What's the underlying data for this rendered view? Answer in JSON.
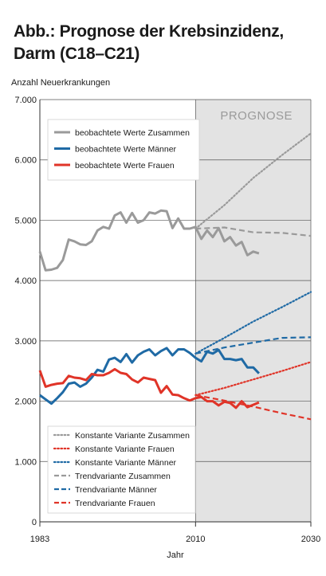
{
  "title_line1": "Abb.: Prognose der Krebsinzidenz,",
  "title_line2": "Darm (C18–C21)",
  "chart_data": {
    "type": "line",
    "ylabel": "Anzahl Neuerkrankungen",
    "xlabel": "Jahr",
    "xlim": [
      1983,
      2030
    ],
    "ylim": [
      0,
      7000
    ],
    "x_ticks": [
      1983,
      2010,
      2030
    ],
    "x_tick_labels": [
      "1983",
      "2010",
      "2030"
    ],
    "y_ticks": [
      0,
      1000,
      2000,
      3000,
      4000,
      5000,
      6000,
      7000
    ],
    "y_tick_labels": [
      "0",
      "1.000",
      "2.000",
      "3.000",
      "4.000",
      "5.000",
      "6.000",
      "7.000"
    ],
    "prognosis_region": {
      "label": "PROGNOSE",
      "start": 2010,
      "end": 2030,
      "color": "#e3e3e3"
    },
    "grid": true,
    "legend_top": [
      {
        "label": "beobachtete Werte Zusammen",
        "color": "#9a9a9a",
        "style": "solid"
      },
      {
        "label": "beobachtete Werte Männer",
        "color": "#1f6aa5",
        "style": "solid"
      },
      {
        "label": "beobachtete Werte Frauen",
        "color": "#e03428",
        "style": "solid"
      }
    ],
    "legend_bottom": [
      {
        "label": "Konstante Variante Zusammen",
        "color": "#9a9a9a",
        "style": "dotted"
      },
      {
        "label": "Konstante Variante Frauen",
        "color": "#e03428",
        "style": "dotted"
      },
      {
        "label": "Konstante Variante Männer",
        "color": "#1f6aa5",
        "style": "dotted"
      },
      {
        "label": "Trendvariante Zusammen",
        "color": "#9a9a9a",
        "style": "dashed"
      },
      {
        "label": "Trendvariante Männer",
        "color": "#1f6aa5",
        "style": "dashed"
      },
      {
        "label": "Trendvariante Frauen",
        "color": "#e03428",
        "style": "dashed"
      }
    ],
    "series": [
      {
        "name": "beobachtete Werte Zusammen",
        "color": "#9a9a9a",
        "style": "solid",
        "x": [
          1983,
          1984,
          1985,
          1986,
          1987,
          1988,
          1989,
          1990,
          1991,
          1992,
          1993,
          1994,
          1995,
          1996,
          1997,
          1998,
          1999,
          2000,
          2001,
          2002,
          2003,
          2004,
          2005,
          2006,
          2007,
          2008,
          2009,
          2010,
          2011,
          2012,
          2013,
          2014,
          2015,
          2016,
          2017,
          2018,
          2019,
          2020,
          2021
        ],
        "y": [
          4480,
          4170,
          4180,
          4210,
          4340,
          4680,
          4650,
          4600,
          4590,
          4650,
          4830,
          4890,
          4860,
          5080,
          5130,
          4960,
          5120,
          4960,
          5000,
          5130,
          5110,
          5160,
          5150,
          4870,
          5030,
          4860,
          4860,
          4890,
          4690,
          4830,
          4720,
          4870,
          4650,
          4720,
          4580,
          4640,
          4420,
          4480,
          4450
        ]
      },
      {
        "name": "beobachtete Werte Männer",
        "color": "#1f6aa5",
        "style": "solid",
        "x": [
          1983,
          1984,
          1985,
          1986,
          1987,
          1988,
          1989,
          1990,
          1991,
          1992,
          1993,
          1994,
          1995,
          1996,
          1997,
          1998,
          1999,
          2000,
          2001,
          2002,
          2003,
          2004,
          2005,
          2006,
          2007,
          2008,
          2009,
          2010,
          2011,
          2012,
          2013,
          2014,
          2015,
          2016,
          2017,
          2018,
          2019,
          2020,
          2021
        ],
        "y": [
          2100,
          2030,
          1960,
          2050,
          2150,
          2290,
          2310,
          2240,
          2290,
          2390,
          2520,
          2490,
          2690,
          2720,
          2650,
          2780,
          2640,
          2760,
          2820,
          2860,
          2760,
          2830,
          2880,
          2760,
          2860,
          2860,
          2800,
          2720,
          2660,
          2820,
          2790,
          2850,
          2700,
          2700,
          2680,
          2700,
          2560,
          2560,
          2460
        ]
      },
      {
        "name": "beobachtete Werte Frauen",
        "color": "#e03428",
        "style": "solid",
        "x": [
          1983,
          1984,
          1985,
          1986,
          1987,
          1988,
          1989,
          1990,
          1991,
          1992,
          1993,
          1994,
          1995,
          1996,
          1997,
          1998,
          1999,
          2000,
          2001,
          2002,
          2003,
          2004,
          2005,
          2006,
          2007,
          2008,
          2009,
          2010,
          2011,
          2012,
          2013,
          2014,
          2015,
          2016,
          2017,
          2018,
          2019,
          2020,
          2021
        ],
        "y": [
          2510,
          2240,
          2270,
          2290,
          2300,
          2420,
          2390,
          2380,
          2350,
          2450,
          2430,
          2430,
          2470,
          2530,
          2470,
          2450,
          2360,
          2310,
          2390,
          2370,
          2350,
          2140,
          2250,
          2110,
          2100,
          2050,
          2010,
          2050,
          2070,
          2000,
          2000,
          1930,
          1990,
          1970,
          1890,
          2000,
          1900,
          1940,
          1980
        ]
      },
      {
        "name": "Konstante Variante Zusammen",
        "color": "#9a9a9a",
        "style": "dotted",
        "x": [
          2010,
          2015,
          2020,
          2025,
          2030
        ],
        "y": [
          4860,
          5250,
          5700,
          6080,
          6440
        ]
      },
      {
        "name": "Trendvariante Zusammen",
        "color": "#9a9a9a",
        "style": "dashed",
        "x": [
          2010,
          2015,
          2020,
          2025,
          2030
        ],
        "y": [
          4860,
          4880,
          4800,
          4790,
          4740
        ]
      },
      {
        "name": "Konstante Variante Männer",
        "color": "#1f6aa5",
        "style": "dotted",
        "x": [
          2010,
          2015,
          2020,
          2025,
          2030
        ],
        "y": [
          2790,
          3050,
          3320,
          3560,
          3810
        ]
      },
      {
        "name": "Trendvariante Männer",
        "color": "#1f6aa5",
        "style": "dashed",
        "x": [
          2010,
          2015,
          2020,
          2025,
          2030
        ],
        "y": [
          2790,
          2890,
          2970,
          3050,
          3060
        ]
      },
      {
        "name": "Konstante Variante Frauen",
        "color": "#e03428",
        "style": "dotted",
        "x": [
          2010,
          2015,
          2020,
          2025,
          2030
        ],
        "y": [
          2100,
          2220,
          2360,
          2500,
          2650
        ]
      },
      {
        "name": "Trendvariante Frauen",
        "color": "#e03428",
        "style": "dashed",
        "x": [
          2010,
          2015,
          2020,
          2025,
          2030
        ],
        "y": [
          2100,
          2010,
          1910,
          1800,
          1700
        ]
      }
    ]
  }
}
